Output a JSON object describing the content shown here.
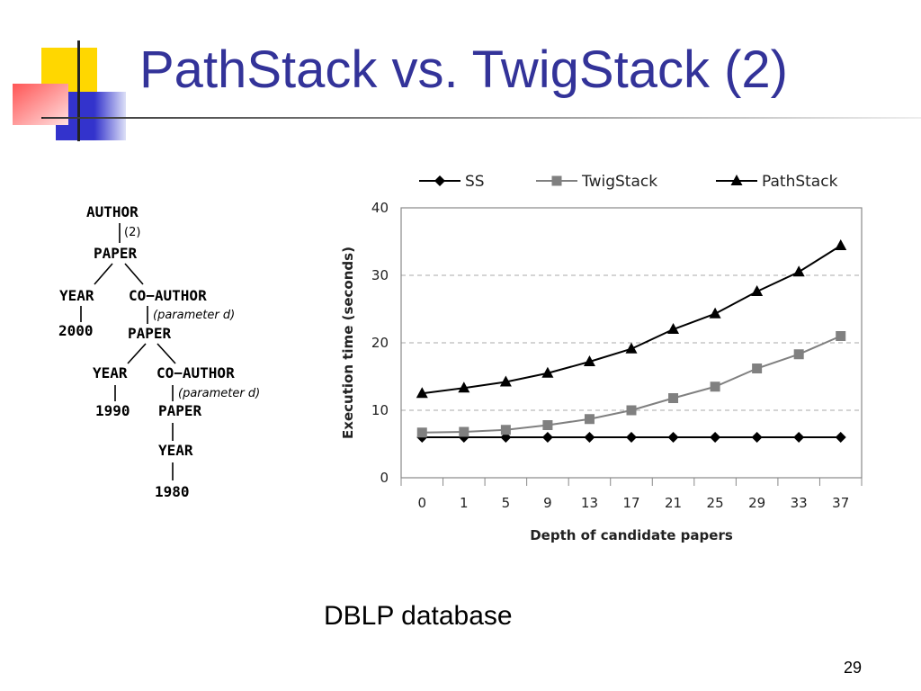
{
  "slide": {
    "title": "PathStack vs. TwigStack (2)",
    "subtitle": "DBLP database",
    "number": "29"
  },
  "tree": {
    "nodes": {
      "author": "AUTHOR",
      "paper1": "PAPER",
      "year1": "YEAR",
      "coauthor1": "CO−AUTHOR",
      "val2000": "2000",
      "paper2": "PAPER",
      "year2": "YEAR",
      "coauthor2": "CO−AUTHOR",
      "val1990": "1990",
      "paper3": "PAPER",
      "year3": "YEAR",
      "val1980": "1980"
    },
    "annotations": {
      "a1": "(2)",
      "a2": "(parameter d)",
      "a3": "(parameter d)"
    }
  },
  "chart_data": {
    "type": "line",
    "title": "",
    "xlabel": "Depth of candidate papers",
    "ylabel": "Execution time (seconds)",
    "categories": [
      "0",
      "1",
      "5",
      "9",
      "13",
      "17",
      "21",
      "25",
      "29",
      "33",
      "37"
    ],
    "ylim": [
      0,
      40
    ],
    "yticks": [
      0,
      10,
      20,
      30,
      40
    ],
    "grid": "horizontal dashed",
    "legend": "top",
    "series": [
      {
        "name": "SS",
        "marker": "diamond",
        "color": "#000000",
        "values": [
          6,
          6,
          6,
          6,
          6,
          6,
          6,
          6,
          6,
          6,
          6
        ]
      },
      {
        "name": "TwigStack",
        "marker": "square",
        "color": "#808080",
        "values": [
          6.7,
          6.8,
          7.1,
          7.8,
          8.7,
          10,
          11.8,
          13.5,
          16.2,
          18.3,
          21
        ]
      },
      {
        "name": "PathStack",
        "marker": "triangle",
        "color": "#000000",
        "values": [
          12.5,
          13.3,
          14.2,
          15.5,
          17.2,
          19.1,
          22,
          24.3,
          27.6,
          30.5,
          34.4
        ]
      }
    ]
  }
}
